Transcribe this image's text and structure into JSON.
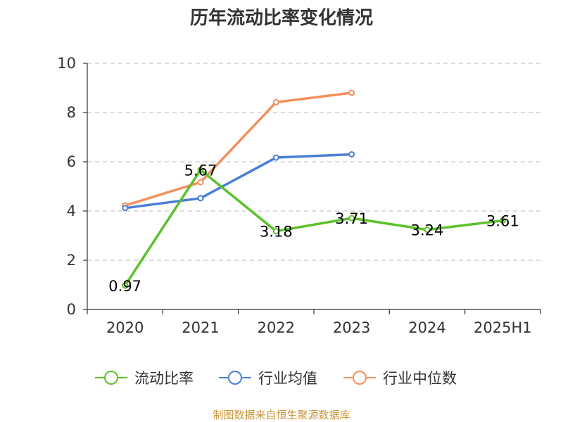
{
  "chart_data": {
    "type": "line",
    "title": "历年流动比率变化情况",
    "categories": [
      "2020",
      "2021",
      "2022",
      "2023",
      "2024",
      "2025H1"
    ],
    "ylim": [
      0,
      10
    ],
    "yticks": [
      0,
      2,
      4,
      6,
      8,
      10
    ],
    "grid": true,
    "legend_position": "bottom",
    "series": [
      {
        "name": "流动比率",
        "color": "#5cc12b",
        "values": [
          0.97,
          5.67,
          3.18,
          3.71,
          3.24,
          3.61
        ],
        "data_labels": [
          "0.97",
          "5.67",
          "3.18",
          "3.71",
          "3.24",
          "3.61"
        ]
      },
      {
        "name": "行业均值",
        "color": "#4a7fd6",
        "values": [
          4.12,
          4.52,
          6.17,
          6.3,
          null,
          null
        ]
      },
      {
        "name": "行业中位数",
        "color": "#f48f5c",
        "values": [
          4.22,
          5.17,
          8.42,
          8.8,
          null,
          null
        ]
      }
    ]
  },
  "source": "制图数据来自恒生聚源数据库"
}
